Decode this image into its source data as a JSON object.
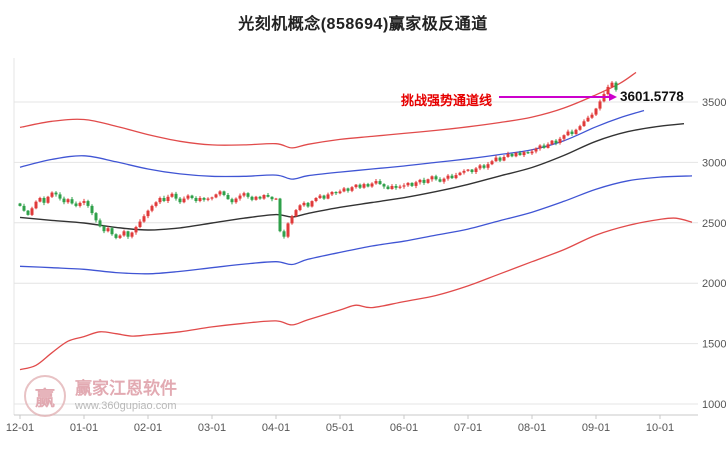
{
  "header": {
    "title": "光刻机概念(858694)赢家极反通道"
  },
  "watermark": {
    "brand": "赢家江恩软件",
    "url": "www.360gupiao.com",
    "logo_char": "赢"
  },
  "chart_data": {
    "type": "candlestick",
    "title": "光刻机概念(858694)赢家极反通道",
    "legend_position": "none",
    "grid": "horizontal",
    "x_ticks": [
      "12-01",
      "01-01",
      "02-01",
      "03-01",
      "04-01",
      "05-01",
      "06-01",
      "07-01",
      "08-01",
      "09-01",
      "10-01"
    ],
    "y_ticks": [
      1000,
      1500,
      2000,
      2500,
      3000,
      3500
    ],
    "ylim": [
      950,
      3900
    ],
    "candles_per_month": 16,
    "annotation": {
      "text": "挑战强势通道线",
      "price": "3601.5778"
    },
    "colors": {
      "up": "#e03a3a",
      "down": "#2fa04a",
      "grid": "#e4e4e4",
      "axis_line": "#c9c9c9",
      "axis_text": "#555555",
      "annotation_text": "#e60000",
      "arrow": "#cc00cc",
      "price_text": "#111111",
      "channel_red": "#e14b4b",
      "channel_blue": "#4055d4",
      "channel_black": "#333333",
      "watermark_pink": "#dc96a0",
      "watermark_gray": "#a8a8a8"
    },
    "first_open": 2660,
    "closes": [
      2640,
      2600,
      2565,
      2620,
      2675,
      2705,
      2665,
      2715,
      2750,
      2735,
      2700,
      2670,
      2695,
      2660,
      2640,
      2665,
      2680,
      2640,
      2580,
      2520,
      2470,
      2430,
      2455,
      2405,
      2375,
      2395,
      2430,
      2385,
      2420,
      2465,
      2510,
      2555,
      2600,
      2640,
      2670,
      2705,
      2680,
      2715,
      2740,
      2700,
      2670,
      2700,
      2725,
      2705,
      2680,
      2705,
      2690,
      2700,
      2710,
      2735,
      2760,
      2730,
      2695,
      2670,
      2700,
      2725,
      2745,
      2715,
      2690,
      2715,
      2700,
      2730,
      2715,
      2695,
      2700,
      2430,
      2385,
      2495,
      2555,
      2605,
      2645,
      2665,
      2635,
      2680,
      2705,
      2725,
      2700,
      2735,
      2755,
      2745,
      2760,
      2785,
      2765,
      2795,
      2815,
      2790,
      2820,
      2800,
      2825,
      2845,
      2820,
      2800,
      2780,
      2805,
      2790,
      2800,
      2810,
      2830,
      2805,
      2835,
      2855,
      2830,
      2860,
      2885,
      2860,
      2840,
      2865,
      2890,
      2870,
      2895,
      2915,
      2930,
      2940,
      2920,
      2950,
      2975,
      2955,
      2985,
      3010,
      3040,
      3015,
      3045,
      3070,
      3050,
      3080,
      3060,
      3085,
      3075,
      3090,
      3115,
      3140,
      3120,
      3150,
      3180,
      3160,
      3195,
      3225,
      3255,
      3235,
      3270,
      3300,
      3340,
      3370,
      3395,
      3445,
      3505,
      3565,
      3625,
      3660,
      3601.5778
    ],
    "channel_lines": {
      "upper_red": {
        "color": "#e14b4b",
        "width": 1.3,
        "points": [
          [
            0,
            3290
          ],
          [
            8,
            3340
          ],
          [
            16,
            3355
          ],
          [
            24,
            3300
          ],
          [
            32,
            3230
          ],
          [
            40,
            3175
          ],
          [
            48,
            3145
          ],
          [
            56,
            3145
          ],
          [
            64,
            3155
          ],
          [
            68,
            3120
          ],
          [
            72,
            3150
          ],
          [
            80,
            3190
          ],
          [
            88,
            3215
          ],
          [
            96,
            3240
          ],
          [
            104,
            3265
          ],
          [
            112,
            3295
          ],
          [
            120,
            3330
          ],
          [
            128,
            3375
          ],
          [
            136,
            3450
          ],
          [
            144,
            3560
          ],
          [
            150,
            3655
          ],
          [
            154,
            3745
          ]
        ]
      },
      "upper_blue": {
        "color": "#4055d4",
        "width": 1.3,
        "points": [
          [
            0,
            2960
          ],
          [
            8,
            3025
          ],
          [
            16,
            3055
          ],
          [
            24,
            3005
          ],
          [
            32,
            2945
          ],
          [
            40,
            2905
          ],
          [
            48,
            2885
          ],
          [
            56,
            2885
          ],
          [
            64,
            2895
          ],
          [
            68,
            2862
          ],
          [
            72,
            2890
          ],
          [
            80,
            2920
          ],
          [
            88,
            2945
          ],
          [
            96,
            2970
          ],
          [
            104,
            3000
          ],
          [
            112,
            3030
          ],
          [
            120,
            3065
          ],
          [
            128,
            3105
          ],
          [
            136,
            3180
          ],
          [
            144,
            3295
          ],
          [
            150,
            3370
          ],
          [
            156,
            3430
          ]
        ]
      },
      "center_black": {
        "color": "#333333",
        "width": 1.4,
        "points": [
          [
            0,
            2545
          ],
          [
            8,
            2520
          ],
          [
            16,
            2498
          ],
          [
            24,
            2462
          ],
          [
            32,
            2440
          ],
          [
            40,
            2458
          ],
          [
            48,
            2498
          ],
          [
            56,
            2538
          ],
          [
            64,
            2568
          ],
          [
            68,
            2548
          ],
          [
            72,
            2578
          ],
          [
            80,
            2628
          ],
          [
            88,
            2668
          ],
          [
            96,
            2708
          ],
          [
            104,
            2758
          ],
          [
            112,
            2818
          ],
          [
            120,
            2888
          ],
          [
            128,
            2958
          ],
          [
            136,
            3058
          ],
          [
            144,
            3175
          ],
          [
            152,
            3255
          ],
          [
            160,
            3300
          ],
          [
            166,
            3320
          ]
        ]
      },
      "lower_blue": {
        "color": "#4055d4",
        "width": 1.3,
        "points": [
          [
            0,
            2140
          ],
          [
            8,
            2128
          ],
          [
            16,
            2115
          ],
          [
            24,
            2088
          ],
          [
            32,
            2078
          ],
          [
            40,
            2098
          ],
          [
            48,
            2128
          ],
          [
            56,
            2158
          ],
          [
            64,
            2178
          ],
          [
            68,
            2155
          ],
          [
            72,
            2198
          ],
          [
            80,
            2255
          ],
          [
            88,
            2308
          ],
          [
            96,
            2348
          ],
          [
            104,
            2398
          ],
          [
            112,
            2448
          ],
          [
            120,
            2518
          ],
          [
            128,
            2588
          ],
          [
            136,
            2678
          ],
          [
            144,
            2778
          ],
          [
            152,
            2848
          ],
          [
            160,
            2878
          ],
          [
            168,
            2888
          ]
        ]
      },
      "lower_red": {
        "color": "#e14b4b",
        "width": 1.3,
        "points": [
          [
            0,
            1285
          ],
          [
            4,
            1320
          ],
          [
            8,
            1425
          ],
          [
            12,
            1520
          ],
          [
            16,
            1558
          ],
          [
            20,
            1598
          ],
          [
            24,
            1582
          ],
          [
            28,
            1562
          ],
          [
            32,
            1572
          ],
          [
            40,
            1598
          ],
          [
            48,
            1638
          ],
          [
            56,
            1668
          ],
          [
            64,
            1688
          ],
          [
            68,
            1655
          ],
          [
            72,
            1698
          ],
          [
            80,
            1778
          ],
          [
            84,
            1818
          ],
          [
            88,
            1798
          ],
          [
            96,
            1848
          ],
          [
            104,
            1898
          ],
          [
            112,
            1978
          ],
          [
            120,
            2078
          ],
          [
            128,
            2178
          ],
          [
            136,
            2278
          ],
          [
            144,
            2398
          ],
          [
            152,
            2478
          ],
          [
            160,
            2528
          ],
          [
            164,
            2538
          ],
          [
            168,
            2505
          ]
        ]
      }
    }
  }
}
